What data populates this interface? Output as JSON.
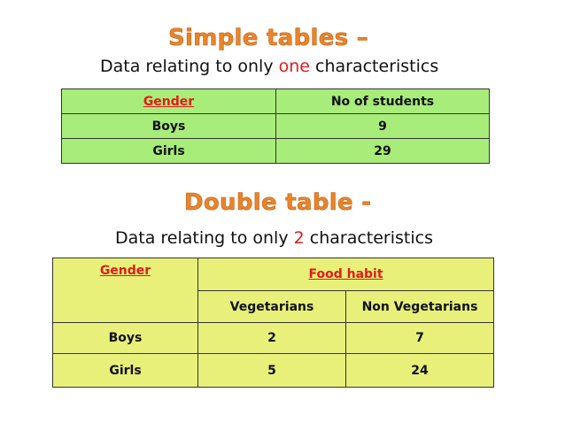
{
  "simple": {
    "heading": "Simple tables –",
    "subtitle_before": "Data relating to only ",
    "subtitle_highlight": "one",
    "subtitle_after": " characteristics",
    "table": {
      "headers": [
        "Gender",
        "No of students"
      ],
      "rows": [
        [
          "Boys",
          "9"
        ],
        [
          "Girls",
          "29"
        ]
      ]
    }
  },
  "double": {
    "heading": "Double table -",
    "subtitle_before": "Data relating to only ",
    "subtitle_highlight": "2",
    "subtitle_after": " characteristics",
    "table": {
      "col1_header": "Gender",
      "group_header": "Food habit",
      "subheaders": [
        "Vegetarians",
        "Non Vegetarians"
      ],
      "rows": [
        [
          "Boys",
          "2",
          "7"
        ],
        [
          "Girls",
          "5",
          "24"
        ]
      ]
    }
  },
  "colors": {
    "heading": "#e8842c",
    "highlight": "#e21b1b",
    "simple_table_bg": "#a8ec7a",
    "double_table_bg": "#e8f07a"
  }
}
